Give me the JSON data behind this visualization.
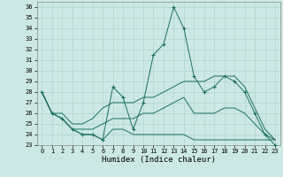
{
  "title": "",
  "xlabel": "Humidex (Indice chaleur)",
  "xlim": [
    -0.5,
    23.5
  ],
  "ylim": [
    23,
    36.5
  ],
  "yticks": [
    23,
    24,
    25,
    26,
    27,
    28,
    29,
    30,
    31,
    32,
    33,
    34,
    35,
    36
  ],
  "xticks": [
    0,
    1,
    2,
    3,
    4,
    5,
    6,
    7,
    8,
    9,
    10,
    11,
    12,
    13,
    14,
    15,
    16,
    17,
    18,
    19,
    20,
    21,
    22,
    23
  ],
  "background_color": "#cce8e4",
  "grid_color": "#b0d4ce",
  "line_color": "#1a7060",
  "main_line": [
    28,
    26,
    25.5,
    24.5,
    24,
    24,
    23.5,
    28.5,
    27.5,
    24.5,
    27,
    31.5,
    32.5,
    36,
    34,
    29.5,
    28,
    28.5,
    29.5,
    29,
    28,
    26,
    24,
    23
  ],
  "min_line": [
    28,
    26,
    25.5,
    24.5,
    24,
    24,
    23.5,
    24.5,
    24.5,
    24,
    24,
    24,
    24,
    24,
    24,
    23.5,
    23.5,
    23.5,
    23.5,
    23.5,
    23.5,
    23.5,
    23.5,
    23.5
  ],
  "max_line": [
    28,
    26,
    26,
    25,
    25,
    25.5,
    26.5,
    27,
    27,
    27,
    27.5,
    27.5,
    28,
    28.5,
    29,
    29,
    29,
    29.5,
    29.5,
    29.5,
    28.5,
    26.5,
    24.5,
    23.5
  ],
  "mean_line": [
    28,
    26,
    25.5,
    24.5,
    24.5,
    24.5,
    25,
    25.5,
    25.5,
    25.5,
    26,
    26,
    26.5,
    27,
    27.5,
    26,
    26,
    26,
    26.5,
    26.5,
    26,
    25,
    24,
    23.5
  ]
}
